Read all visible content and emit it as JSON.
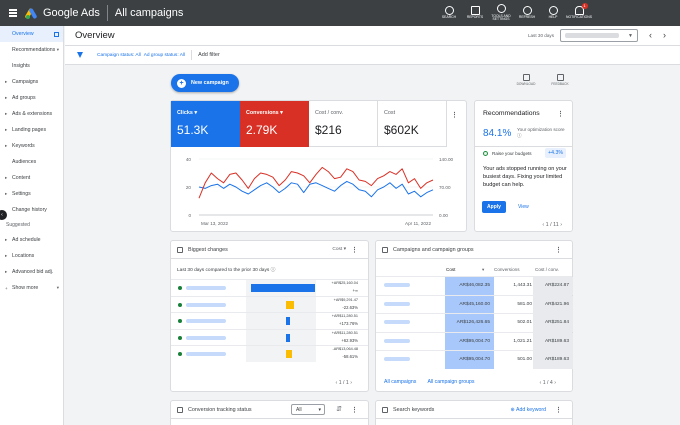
{
  "topbar": {
    "brand": "Google Ads",
    "page": "All campaigns",
    "icons": [
      {
        "name": "search-icon",
        "label": "SEARCH"
      },
      {
        "name": "reports-icon",
        "label": "REPORTS"
      },
      {
        "name": "tools-icon",
        "label": "TOOLS AND SETTINGS"
      },
      {
        "name": "refresh-icon",
        "label": "REFRESH"
      },
      {
        "name": "help-icon",
        "label": "HELP"
      },
      {
        "name": "notifications-icon",
        "label": "NOTIFICATIONS",
        "badge": "1"
      }
    ]
  },
  "sidebar": {
    "items": [
      {
        "label": "Overview",
        "active": true
      },
      {
        "label": "Recommendations"
      },
      {
        "label": "Insights"
      },
      {
        "label": "Campaigns"
      },
      {
        "label": "Ad groups"
      },
      {
        "label": "Ads & extensions"
      },
      {
        "label": "Landing pages"
      },
      {
        "label": "Keywords"
      },
      {
        "label": "Audiences"
      },
      {
        "label": "Content"
      },
      {
        "label": "Settings"
      },
      {
        "label": "Change history"
      }
    ],
    "suggested_label": "Suggested",
    "suggested": [
      {
        "label": "Ad schedule"
      },
      {
        "label": "Locations"
      },
      {
        "label": "Advanced bid adj."
      }
    ],
    "show_more": "Show more"
  },
  "header": {
    "title": "Overview",
    "date_label": "Last 30 days"
  },
  "filter": {
    "campaign_status": "Campaign status: All",
    "adgroup_status": "Ad group status: All",
    "add_filter": "Add filter"
  },
  "actions": {
    "new_campaign": "New campaign",
    "download": "DOWNLOAD",
    "feedback": "FEEDBACK"
  },
  "metrics": [
    {
      "label": "Clicks",
      "value": "51.3K"
    },
    {
      "label": "Conversions",
      "value": "2.79K"
    },
    {
      "label": "Cost / conv.",
      "value": "$216"
    },
    {
      "label": "Cost",
      "value": "$602K"
    }
  ],
  "chart_data": {
    "type": "line",
    "x_labels": [
      "Mar 13, 2022",
      "Apr 11, 2022"
    ],
    "y_left_ticks": [
      "40",
      "20",
      "0"
    ],
    "y_right_ticks": [
      "140.00",
      "70.00",
      "0.00"
    ],
    "series": [
      {
        "name": "Clicks",
        "color": "#1a73e8",
        "values": [
          20,
          19,
          21,
          22,
          19,
          22,
          20,
          17,
          15,
          18,
          21,
          23,
          20,
          16,
          19,
          23,
          22,
          16,
          22,
          23,
          21,
          19,
          17,
          21,
          24,
          22,
          18,
          17,
          13,
          18,
          20,
          23,
          19,
          22,
          15,
          17,
          13,
          16,
          18
        ]
      },
      {
        "name": "Conversions",
        "color": "#d93025",
        "values": [
          12,
          23,
          30,
          26,
          23,
          29,
          30,
          25,
          19,
          26,
          30,
          29,
          27,
          21,
          25,
          31,
          30,
          28,
          23,
          29,
          34,
          31,
          26,
          27,
          33,
          31,
          25,
          24,
          21,
          26,
          28,
          31,
          29,
          33,
          23,
          26,
          19,
          23,
          25
        ]
      }
    ]
  },
  "recommendations": {
    "title": "Recommendations",
    "score": "84.1%",
    "score_label": "Your optimization score",
    "raise_label": "Raise your budgets",
    "raise_pct": "+4.3%",
    "body": "Your ads stopped running on your busiest days. Fixing your limited budget can help.",
    "apply": "Apply",
    "view": "View",
    "pager": "1 / 11"
  },
  "biggest_changes": {
    "title": "Biggest changes",
    "dropdown": "Cost",
    "subtitle": "Last 30 days compared to the prior 30 days",
    "rows": [
      {
        "v1": "+AR$25,160.04",
        "v2": "+∞",
        "bar_color": "#1a73e8",
        "bar_frac": 0.92
      },
      {
        "v1": "+AR$9,291.47",
        "v2": "-22.63%",
        "bar_color": "#fbbc04",
        "bar_frac": 0.12
      },
      {
        "v1": "+AR$11,280.51",
        "v2": "+173.76%",
        "bar_color": "#1a73e8",
        "bar_frac": 0.06
      },
      {
        "v1": "+AR$11,280.51",
        "v2": "+62.93%",
        "bar_color": "#1a73e8",
        "bar_frac": 0.06
      },
      {
        "v1": "-AR$13,064.48",
        "v2": "-58.61%",
        "bar_color": "#fbbc04",
        "bar_frac": 0.08
      }
    ],
    "pager": "1 / 1"
  },
  "campaign_groups": {
    "title": "Campaigns and campaign groups",
    "columns": [
      "Cost",
      "Conversions",
      "Cost / conv."
    ],
    "rows": [
      {
        "cost": "AR$46,082.35",
        "conv": "1,443.31",
        "cpc": "AR$224.87"
      },
      {
        "cost": "AR$45,160.00",
        "conv": "581.00",
        "cpc": "AR$421.96"
      },
      {
        "cost": "AR$126,426.65",
        "conv": "502.01",
        "cpc": "AR$251.84"
      },
      {
        "cost": "AR$95,004.70",
        "conv": "1,021.21",
        "cpc": "AR$189.63"
      },
      {
        "cost": "AR$95,004.70",
        "conv": "501.00",
        "cpc": "AR$189.63"
      }
    ],
    "links": [
      "All campaigns",
      "All campaign groups"
    ],
    "pager": "1 / 4"
  },
  "conversion_tracking": {
    "title": "Conversion tracking status",
    "select": "All"
  },
  "search_keywords": {
    "title": "Search keywords",
    "add": "Add keyword"
  }
}
